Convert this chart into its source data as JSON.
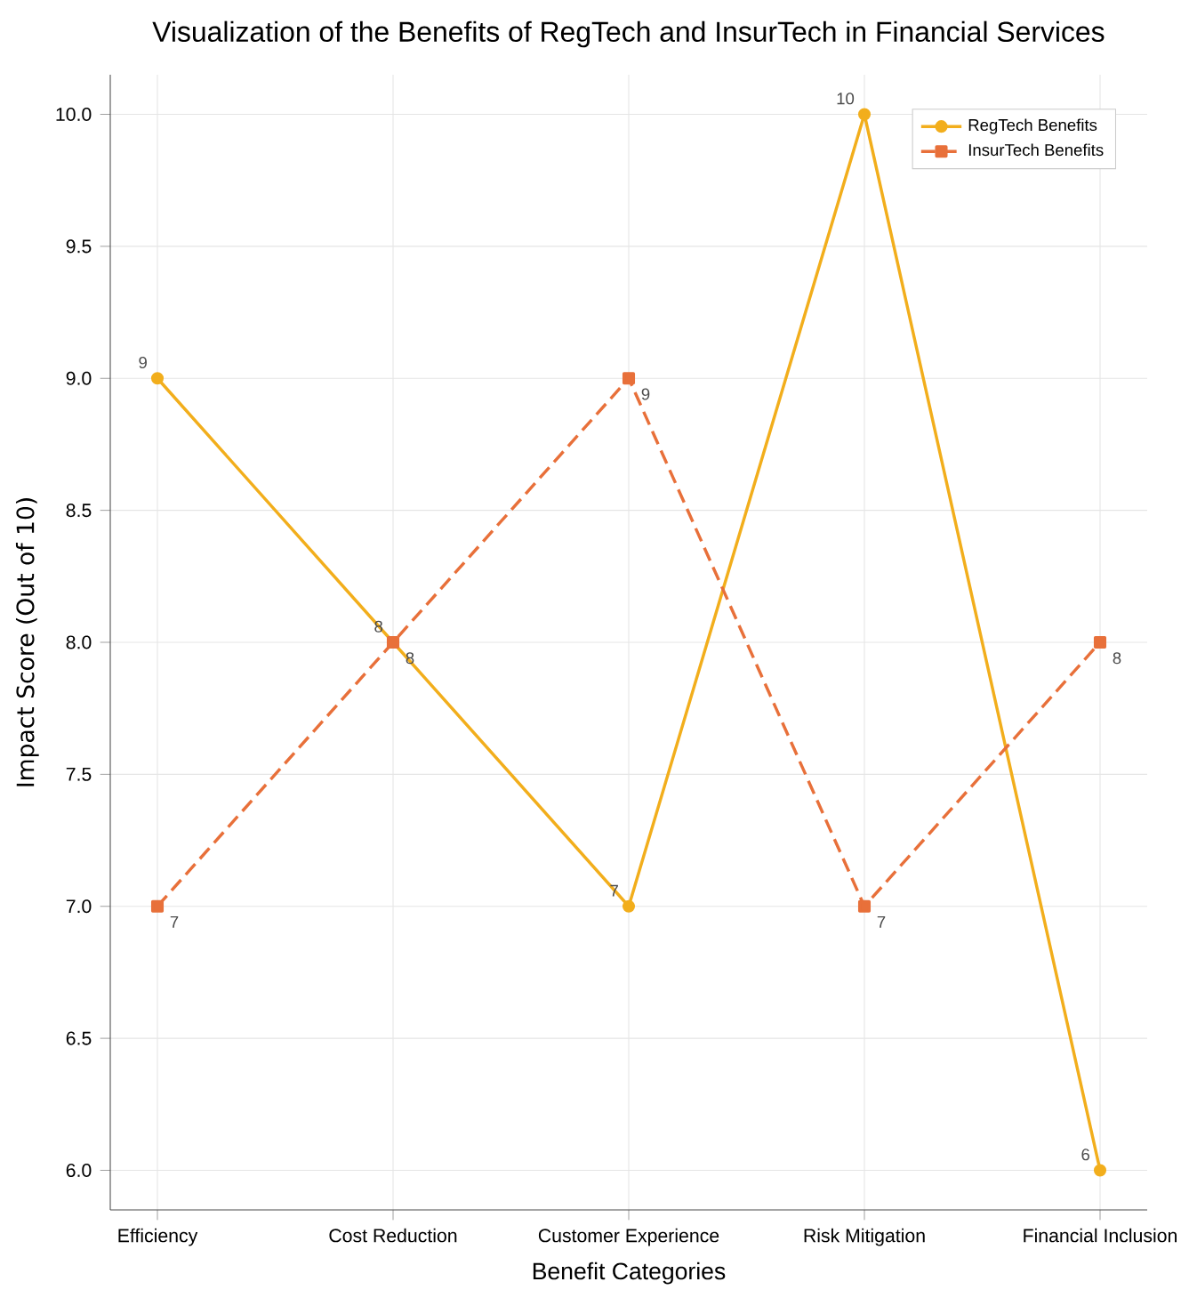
{
  "chart_data": {
    "type": "line",
    "title": "Visualization of the Benefits of RegTech and InsurTech in Financial Services",
    "xlabel": "Benefit Categories",
    "ylabel": "Impact Score (Out of 10)",
    "categories": [
      "Efficiency",
      "Cost Reduction",
      "Customer Experience",
      "Risk Mitigation",
      "Financial Inclusion"
    ],
    "series": [
      {
        "name": "RegTech Benefits",
        "color": "#f2ae1c",
        "values": [
          9,
          8,
          7,
          10,
          6
        ],
        "marker": "circle",
        "line_style": "solid"
      },
      {
        "name": "InsurTech Benefits",
        "color": "#e8703a",
        "values": [
          7,
          8,
          9,
          7,
          8
        ],
        "marker": "square",
        "line_style": "dashed"
      }
    ],
    "ylim": [
      5.85,
      10.15
    ],
    "yticks": [
      {
        "value": 6,
        "label": "6.0"
      },
      {
        "value": 6.5,
        "label": "6.5"
      },
      {
        "value": 7,
        "label": "7.0"
      },
      {
        "value": 7.5,
        "label": "7.5"
      },
      {
        "value": 8,
        "label": "8.0"
      },
      {
        "value": 8.5,
        "label": "8.5"
      },
      {
        "value": 9,
        "label": "9.0"
      },
      {
        "value": 9.5,
        "label": "9.5"
      },
      {
        "value": 10,
        "label": "10.0"
      }
    ],
    "grid": true,
    "legend": "top right",
    "data_labels": true
  }
}
